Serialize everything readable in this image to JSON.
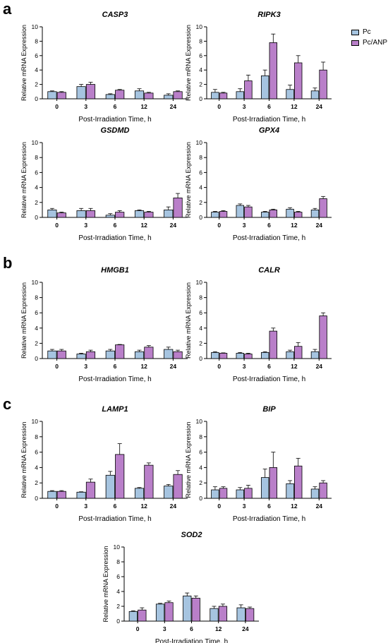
{
  "panels": [
    "a",
    "b",
    "c"
  ],
  "legend": {
    "items": [
      {
        "label": "Pc",
        "color": "#a6c4e0"
      },
      {
        "label": "Pc/ANP",
        "color": "#b97fc9"
      }
    ]
  },
  "chart_data": [
    {
      "type": "bar",
      "title": "CASP3",
      "categories": [
        "0",
        "3",
        "6",
        "12",
        "24"
      ],
      "xlabel": "Post-Irradiation Time, h",
      "ylabel": "Relative mRNA Expression",
      "ylim": [
        0,
        10
      ],
      "yticks": [
        0,
        2,
        4,
        6,
        8,
        10
      ],
      "series": [
        {
          "name": "Pc",
          "values": [
            1.0,
            1.7,
            0.6,
            1.1,
            0.5
          ],
          "errors": [
            0.1,
            0.3,
            0.1,
            0.3,
            0.2
          ]
        },
        {
          "name": "Pc/ANP",
          "values": [
            0.9,
            2.0,
            1.2,
            0.8,
            1.0
          ],
          "errors": [
            0.1,
            0.3,
            0.1,
            0.1,
            0.1
          ]
        }
      ]
    },
    {
      "type": "bar",
      "title": "RIPK3",
      "categories": [
        "0",
        "3",
        "6",
        "12",
        "24"
      ],
      "xlabel": "Post-Irradiation Time, h",
      "ylabel": "Relative mRNA Expression",
      "ylim": [
        0,
        10
      ],
      "yticks": [
        0,
        2,
        4,
        6,
        8,
        10
      ],
      "series": [
        {
          "name": "Pc",
          "values": [
            0.9,
            1.0,
            3.2,
            1.3,
            1.1
          ],
          "errors": [
            0.4,
            0.4,
            0.8,
            0.6,
            0.4
          ]
        },
        {
          "name": "Pc/ANP",
          "values": [
            0.8,
            2.5,
            7.8,
            5.0,
            4.0
          ],
          "errors": [
            0.1,
            0.8,
            1.2,
            1.0,
            1.1
          ]
        }
      ]
    },
    {
      "type": "bar",
      "title": "GSDMD",
      "categories": [
        "0",
        "3",
        "6",
        "12",
        "24"
      ],
      "xlabel": "Post-Irradiation Time, h",
      "ylabel": "Relative mRNA Expression",
      "ylim": [
        0,
        10
      ],
      "yticks": [
        0,
        2,
        4,
        6,
        8,
        10
      ],
      "series": [
        {
          "name": "Pc",
          "values": [
            1.0,
            0.9,
            0.3,
            0.9,
            1.0
          ],
          "errors": [
            0.2,
            0.3,
            0.2,
            0.1,
            0.4
          ]
        },
        {
          "name": "Pc/ANP",
          "values": [
            0.6,
            0.9,
            0.7,
            0.7,
            2.6
          ],
          "errors": [
            0.1,
            0.3,
            0.2,
            0.1,
            0.6
          ]
        }
      ]
    },
    {
      "type": "bar",
      "title": "GPX4",
      "categories": [
        "0",
        "3",
        "6",
        "12",
        "24"
      ],
      "xlabel": "Post-Irradiation Time, h",
      "ylabel": "Relative mRNA Expression",
      "ylim": [
        0,
        10
      ],
      "yticks": [
        0,
        2,
        4,
        6,
        8,
        10
      ],
      "series": [
        {
          "name": "Pc",
          "values": [
            0.7,
            1.6,
            0.7,
            1.1,
            1.0
          ],
          "errors": [
            0.1,
            0.2,
            0.1,
            0.2,
            0.2
          ]
        },
        {
          "name": "Pc/ANP",
          "values": [
            0.8,
            1.4,
            1.0,
            0.7,
            2.5
          ],
          "errors": [
            0.1,
            0.2,
            0.1,
            0.1,
            0.3
          ]
        }
      ]
    },
    {
      "type": "bar",
      "title": "HMGB1",
      "categories": [
        "0",
        "3",
        "6",
        "12",
        "24"
      ],
      "xlabel": "Post-Irradiation Time, h",
      "ylabel": "Relative mRNA Expression",
      "ylim": [
        0,
        10
      ],
      "yticks": [
        0,
        2,
        4,
        6,
        8,
        10
      ],
      "series": [
        {
          "name": "Pc",
          "values": [
            1.0,
            0.6,
            1.0,
            0.9,
            1.2
          ],
          "errors": [
            0.2,
            0.1,
            0.2,
            0.2,
            0.3
          ]
        },
        {
          "name": "Pc/ANP",
          "values": [
            1.0,
            0.9,
            1.8,
            1.5,
            0.9
          ],
          "errors": [
            0.2,
            0.2,
            0.05,
            0.2,
            0.2
          ]
        }
      ]
    },
    {
      "type": "bar",
      "title": "CALR",
      "categories": [
        "0",
        "3",
        "6",
        "12",
        "24"
      ],
      "xlabel": "Post-Irradiation Time, h",
      "ylabel": "Relative mRNA Expression",
      "ylim": [
        0,
        10
      ],
      "yticks": [
        0,
        2,
        4,
        6,
        8,
        10
      ],
      "series": [
        {
          "name": "Pc",
          "values": [
            0.8,
            0.7,
            0.8,
            0.9,
            0.9
          ],
          "errors": [
            0.1,
            0.1,
            0.1,
            0.2,
            0.3
          ]
        },
        {
          "name": "Pc/ANP",
          "values": [
            0.7,
            0.6,
            3.6,
            1.6,
            5.6
          ],
          "errors": [
            0.05,
            0.1,
            0.4,
            0.5,
            0.4
          ]
        }
      ]
    },
    {
      "type": "bar",
      "title": "LAMP1",
      "categories": [
        "0",
        "3",
        "6",
        "12",
        "24"
      ],
      "xlabel": "Post-Irradiation Time, h",
      "ylabel": "Relative mRNA Expression",
      "ylim": [
        0,
        10
      ],
      "yticks": [
        0,
        2,
        4,
        6,
        8,
        10
      ],
      "series": [
        {
          "name": "Pc",
          "values": [
            0.9,
            0.8,
            3.0,
            1.3,
            1.6
          ],
          "errors": [
            0.1,
            0.05,
            0.5,
            0.1,
            0.2
          ]
        },
        {
          "name": "Pc/ANP",
          "values": [
            0.9,
            2.1,
            5.7,
            4.3,
            3.1
          ],
          "errors": [
            0.1,
            0.4,
            1.4,
            0.3,
            0.5
          ]
        }
      ]
    },
    {
      "type": "bar",
      "title": "BIP",
      "categories": [
        "0",
        "3",
        "6",
        "12",
        "24"
      ],
      "xlabel": "Post-Irradiation Time, h",
      "ylabel": "Relative mRNA Expression",
      "ylim": [
        0,
        10
      ],
      "yticks": [
        0,
        2,
        4,
        6,
        8,
        10
      ],
      "series": [
        {
          "name": "Pc",
          "values": [
            1.1,
            1.1,
            2.7,
            1.9,
            1.2
          ],
          "errors": [
            0.4,
            0.3,
            1.1,
            0.4,
            0.3
          ]
        },
        {
          "name": "Pc/ANP",
          "values": [
            1.3,
            1.3,
            4.0,
            4.2,
            2.0
          ],
          "errors": [
            0.2,
            0.4,
            2.0,
            1.0,
            0.3
          ]
        }
      ]
    },
    {
      "type": "bar",
      "title": "SOD2",
      "categories": [
        "0",
        "3",
        "6",
        "12",
        "24"
      ],
      "xlabel": "Post-Irradiation Time, h",
      "ylabel": "Relative mRNA Expression",
      "ylim": [
        0,
        10
      ],
      "yticks": [
        0,
        2,
        4,
        6,
        8,
        10
      ],
      "series": [
        {
          "name": "Pc",
          "values": [
            1.3,
            2.3,
            3.4,
            1.7,
            1.8
          ],
          "errors": [
            0.1,
            0.1,
            0.4,
            0.3,
            0.4
          ]
        },
        {
          "name": "Pc/ANP",
          "values": [
            1.5,
            2.5,
            3.1,
            2.0,
            1.7
          ],
          "errors": [
            0.3,
            0.2,
            0.3,
            0.3,
            0.2
          ]
        }
      ]
    }
  ]
}
